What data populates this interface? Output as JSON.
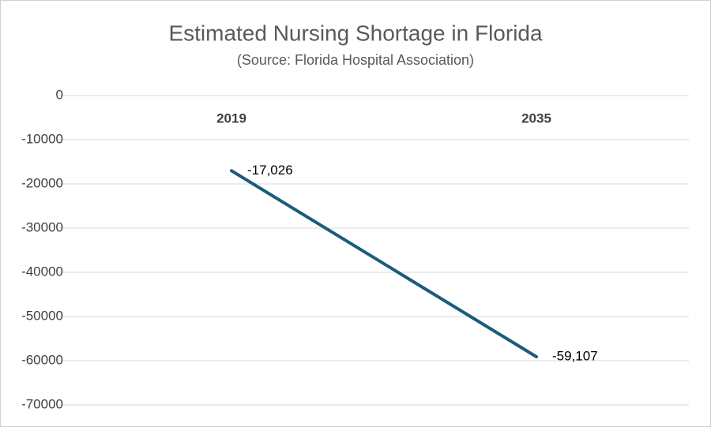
{
  "chart_data": {
    "type": "line",
    "title": "Estimated Nursing Shortage in Florida",
    "subtitle": "(Source: Florida Hospital Association)",
    "categories": [
      "2019",
      "2035"
    ],
    "values": [
      -17026,
      -59107
    ],
    "value_labels": [
      "-17,026",
      "-59,107"
    ],
    "color": "#1b5b7b",
    "ylim": [
      -70000,
      0
    ],
    "yticks": [
      0,
      -10000,
      -20000,
      -30000,
      -40000,
      -50000,
      -60000,
      -70000
    ],
    "grid": true
  }
}
